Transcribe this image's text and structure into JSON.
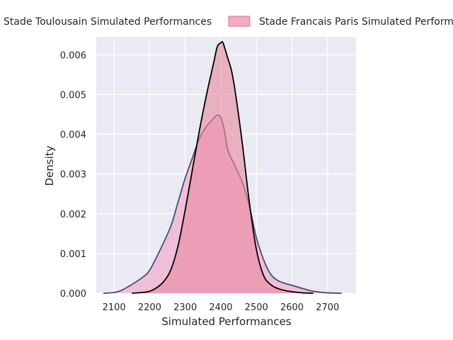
{
  "chart_data": {
    "type": "area",
    "xlabel": "Simulated Performances",
    "ylabel": "Density",
    "xlim": [
      2050,
      2780
    ],
    "ylim": [
      0,
      0.00645
    ],
    "x_ticks": [
      2100,
      2200,
      2300,
      2400,
      2500,
      2600,
      2700
    ],
    "y_ticks": [
      0.0,
      0.001,
      0.002,
      0.003,
      0.004,
      0.005,
      0.006
    ],
    "y_tick_labels": [
      "0.000",
      "0.001",
      "0.002",
      "0.003",
      "0.004",
      "0.005",
      "0.006"
    ],
    "grid": true,
    "legend_position": "top",
    "series": [
      {
        "name": "Stade Toulousain Simulated Performances",
        "fill": "#f0b0d2",
        "line": "#4f4a78",
        "x": [
          2070,
          2100,
          2120,
          2150,
          2180,
          2200,
          2230,
          2260,
          2280,
          2300,
          2320,
          2340,
          2360,
          2380,
          2390,
          2400,
          2410,
          2420,
          2440,
          2460,
          2480,
          2500,
          2520,
          2540,
          2560,
          2580,
          2600,
          2630,
          2660,
          2700,
          2740
        ],
        "y": [
          0.0,
          2e-05,
          7e-05,
          0.00022,
          0.0004,
          0.00058,
          0.0011,
          0.0017,
          0.0023,
          0.0029,
          0.0034,
          0.0039,
          0.0042,
          0.0044,
          0.00448,
          0.00442,
          0.0041,
          0.0036,
          0.0032,
          0.0028,
          0.0022,
          0.0014,
          0.00085,
          0.00048,
          0.00032,
          0.00025,
          0.0002,
          0.00012,
          5e-05,
          1e-05,
          0.0
        ]
      },
      {
        "name": "Stade Francais Paris Simulated Performances",
        "fill": "#e8889c",
        "line": "#000000",
        "x": [
          2150,
          2180,
          2200,
          2220,
          2240,
          2260,
          2280,
          2300,
          2320,
          2340,
          2360,
          2380,
          2390,
          2400,
          2405,
          2410,
          2420,
          2430,
          2440,
          2460,
          2480,
          2500,
          2520,
          2540,
          2560,
          2580,
          2600,
          2630,
          2660
        ],
        "y": [
          0.0,
          2e-05,
          5e-05,
          0.00014,
          0.0003,
          0.0006,
          0.0012,
          0.0021,
          0.0031,
          0.0041,
          0.005,
          0.0058,
          0.0062,
          0.0063,
          0.00632,
          0.0062,
          0.0059,
          0.0056,
          0.0051,
          0.0038,
          0.0023,
          0.0011,
          0.00045,
          0.00022,
          0.00012,
          7e-05,
          4e-05,
          1e-05,
          0.0
        ]
      }
    ]
  }
}
